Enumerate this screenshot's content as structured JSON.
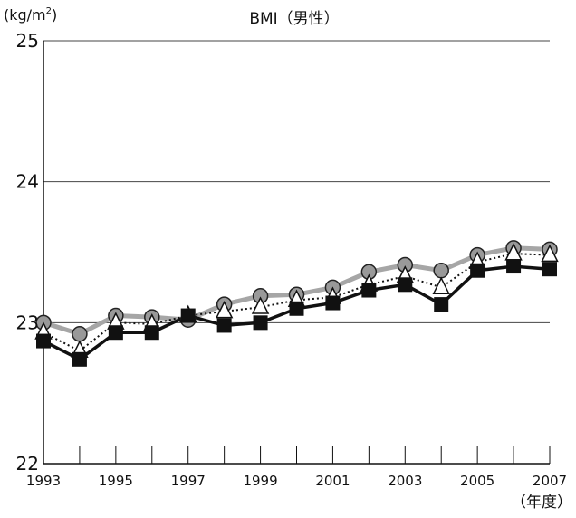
{
  "chart_data": {
    "type": "line",
    "title": "BMI（男性）",
    "ylabel": "(kg/m",
    "ylabel_sup": "2",
    "ylabel_close": ")",
    "xlabel": "（年度）",
    "x": [
      1993,
      1994,
      1995,
      1996,
      1997,
      1998,
      1999,
      2000,
      2001,
      2002,
      2003,
      2004,
      2005,
      2006,
      2007
    ],
    "xticks": [
      "1993",
      "1995",
      "1997",
      "1999",
      "2001",
      "2003",
      "2005",
      "2007"
    ],
    "yticks": [
      "22",
      "23",
      "24",
      "25"
    ],
    "ylim": [
      22,
      25
    ],
    "xlim": [
      1993,
      2007
    ],
    "grid": "horizontal",
    "series": [
      {
        "marker": "circle",
        "line_color": "#a6a6a6",
        "marker_fill": "#999999",
        "line_style": "solid-thick",
        "values": [
          23.0,
          22.92,
          23.05,
          23.04,
          23.02,
          23.13,
          23.19,
          23.2,
          23.25,
          23.36,
          23.41,
          23.37,
          23.48,
          23.53,
          23.52
        ]
      },
      {
        "marker": "triangle",
        "line_color": "#111111",
        "marker_fill": "#ffffff",
        "line_style": "dotted",
        "values": [
          22.93,
          22.8,
          23.0,
          22.99,
          23.05,
          23.08,
          23.11,
          23.16,
          23.18,
          23.27,
          23.33,
          23.25,
          23.43,
          23.49,
          23.48
        ]
      },
      {
        "marker": "square",
        "line_color": "#111111",
        "marker_fill": "#111111",
        "line_style": "solid",
        "values": [
          22.87,
          22.74,
          22.93,
          22.93,
          23.05,
          22.98,
          23.0,
          23.1,
          23.14,
          23.23,
          23.27,
          23.13,
          23.37,
          23.4,
          23.38
        ]
      }
    ]
  }
}
